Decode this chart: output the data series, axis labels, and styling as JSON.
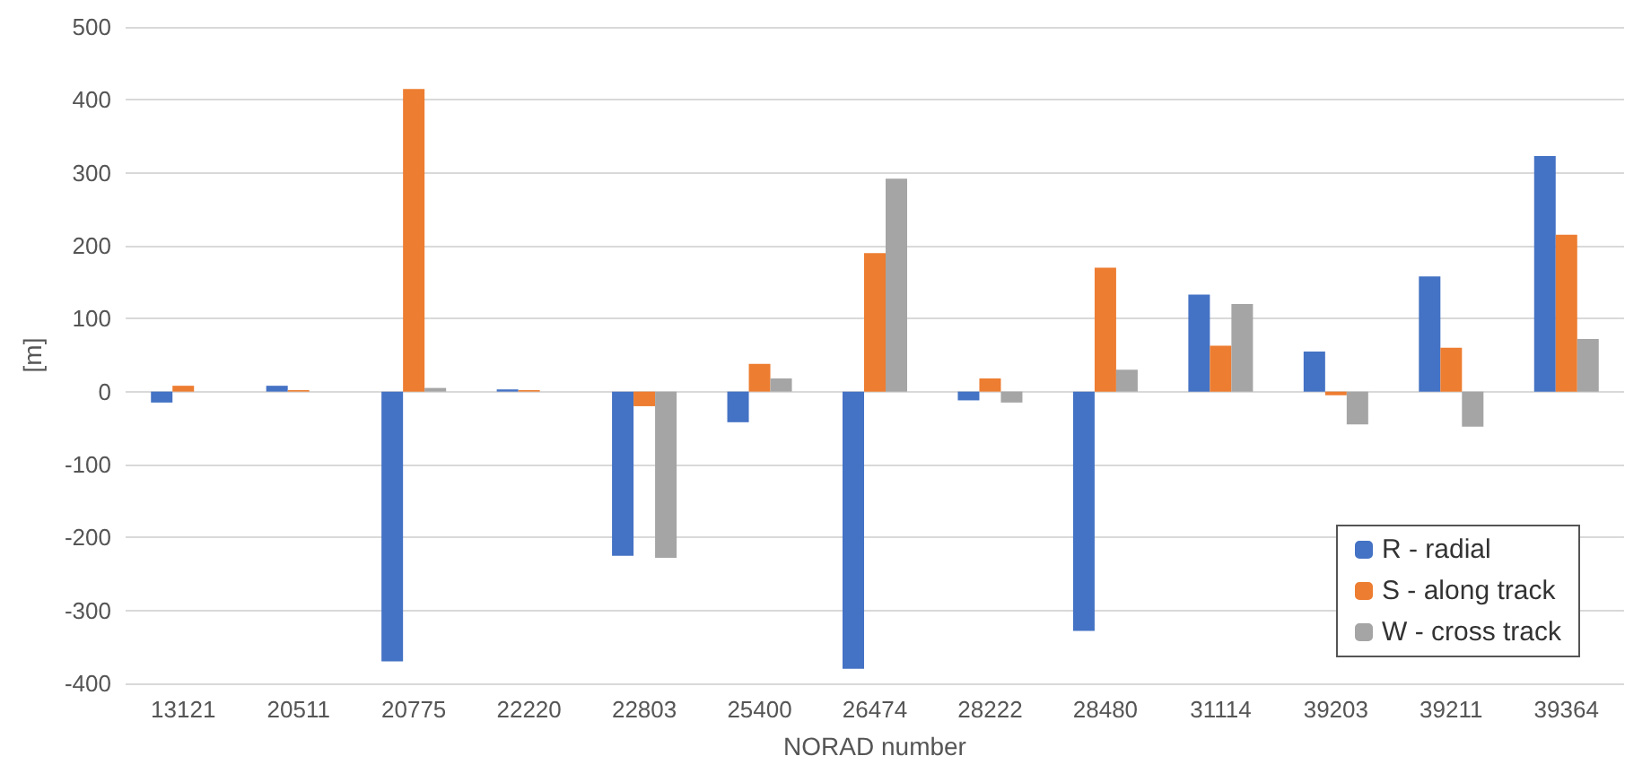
{
  "chart_data": {
    "type": "bar",
    "xlabel": "NORAD number",
    "ylabel": "[m]",
    "categories": [
      "13121",
      "20511",
      "20775",
      "22220",
      "22803",
      "25400",
      "26474",
      "28222",
      "28480",
      "31114",
      "39203",
      "39211",
      "39364"
    ],
    "series": [
      {
        "name": "R - radial",
        "color": "#4472c4",
        "values": [
          -15,
          8,
          -370,
          3,
          -225,
          -42,
          -380,
          -12,
          -328,
          133,
          55,
          158,
          323
        ]
      },
      {
        "name": "S - along track",
        "color": "#ed7d31",
        "values": [
          8,
          2,
          415,
          2,
          -20,
          38,
          190,
          18,
          170,
          63,
          -5,
          60,
          215
        ]
      },
      {
        "name": "W - cross track",
        "color": "#a5a5a5",
        "values": [
          null,
          null,
          5,
          null,
          -228,
          18,
          292,
          -15,
          30,
          120,
          -45,
          -48,
          72
        ]
      }
    ],
    "ylim": [
      -400,
      500
    ],
    "yticks": [
      -400,
      -300,
      -200,
      -100,
      0,
      100,
      200,
      300,
      400,
      500
    ],
    "grid": "y",
    "legend": "bottom right"
  }
}
